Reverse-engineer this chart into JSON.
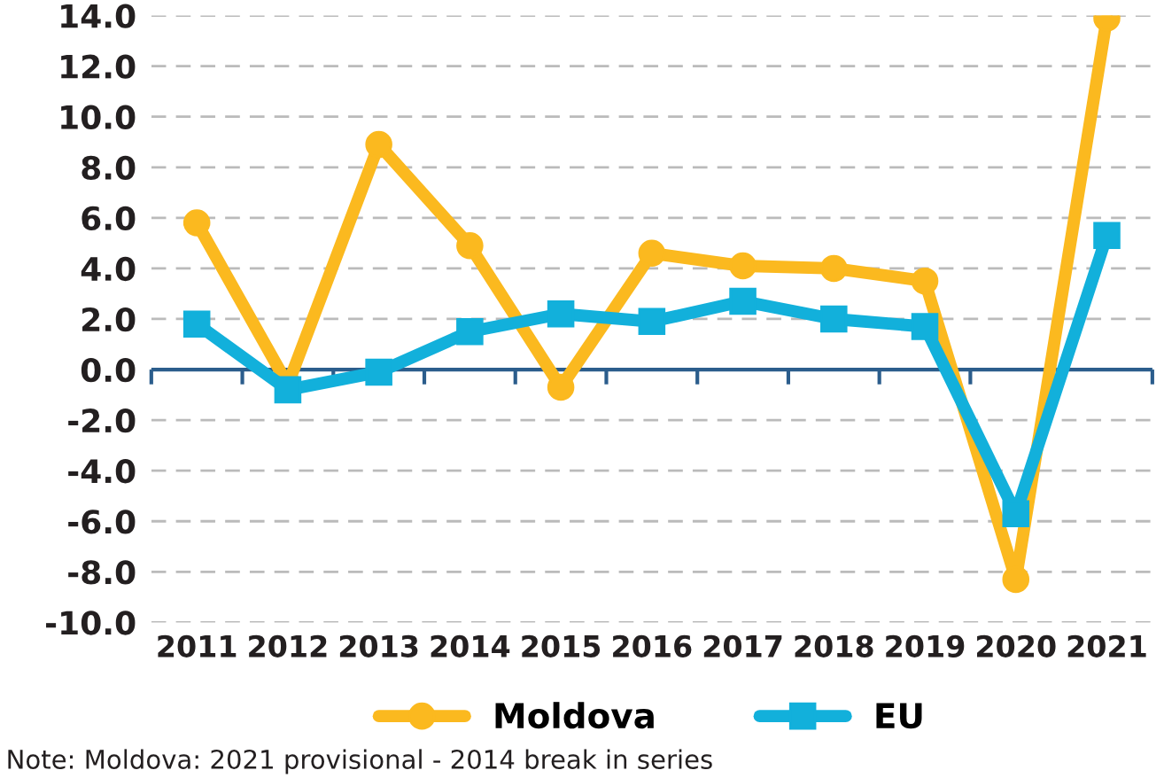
{
  "chart_data": {
    "type": "line",
    "categories": [
      "2011",
      "2012",
      "2013",
      "2014",
      "2015",
      "2016",
      "2017",
      "2018",
      "2019",
      "2020",
      "2021"
    ],
    "series": [
      {
        "name": "Moldova",
        "color": "#fbb91f",
        "marker": "circle",
        "values": [
          5.8,
          -0.6,
          8.9,
          4.9,
          -0.7,
          4.6,
          4.1,
          4.0,
          3.5,
          -8.3,
          13.9
        ]
      },
      {
        "name": "EU",
        "color": "#12b0db",
        "marker": "square",
        "values": [
          1.8,
          -0.8,
          -0.1,
          1.5,
          2.2,
          1.9,
          2.7,
          2.0,
          1.7,
          -5.7,
          5.3
        ]
      }
    ],
    "ylim": [
      -10,
      14
    ],
    "yticks": [
      {
        "value": -10,
        "label": "-10.0"
      },
      {
        "value": -8,
        "label": "-8.0"
      },
      {
        "value": -6,
        "label": "-6.0"
      },
      {
        "value": -4,
        "label": "-4.0"
      },
      {
        "value": -2,
        "label": "-2.0"
      },
      {
        "value": 0,
        "label": "0.0"
      },
      {
        "value": 2,
        "label": "2.0"
      },
      {
        "value": 4,
        "label": "4.0"
      },
      {
        "value": 6,
        "label": "6.0"
      },
      {
        "value": 8,
        "label": "8.0"
      },
      {
        "value": 10,
        "label": "10.0"
      },
      {
        "value": 12,
        "label": "12.0"
      },
      {
        "value": 14,
        "label": "14.0"
      }
    ],
    "ref_lines": [
      {
        "axis": "y",
        "value": 0,
        "label": null,
        "color": "#2b5d8c",
        "line_style": "solid"
      }
    ],
    "grid": "y",
    "legend": "bottom",
    "line_style": "solid",
    "annotations": [
      "Note: Moldova: 2021 provisional - 2014 break in series"
    ]
  }
}
